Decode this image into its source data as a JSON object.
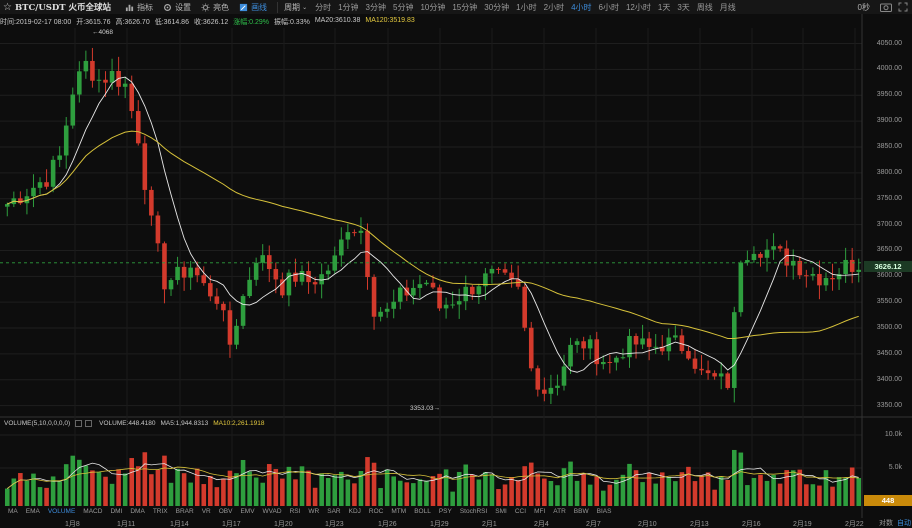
{
  "toolbar": {
    "symbol": "BTC/USDT 火币全球站",
    "indicators_label": "指标",
    "settings_label": "设置",
    "theme_label": "亮色",
    "draw_label": "画线",
    "period_label": "周期",
    "periods": [
      "分时",
      "1分钟",
      "3分钟",
      "5分钟",
      "10分钟",
      "15分钟",
      "30分钟",
      "1小时",
      "2小时",
      "4小时",
      "6小时",
      "12小时",
      "1天",
      "3天",
      "周线",
      "月线"
    ],
    "active_period": "4小时",
    "countdown": "0秒"
  },
  "info": {
    "time": "时间:2019-02-17 08:00",
    "open": "开:3615.76",
    "high": "高:3626.70",
    "low": "低:3614.86",
    "close": "收:3626.12",
    "change": "涨幅:0.29%",
    "amplitude": "振幅:0.33%",
    "ma20": "MA20:3610.38",
    "ma120": "MA120:3519.83"
  },
  "volume_info": {
    "params": "VOLUME(5,10,0,0,0,0)",
    "volume": "VOLUME:448.4180",
    "ma5": "MA5:1,944.8313",
    "ma10": "MA10:2,261.1918"
  },
  "indicator_tabs": [
    "MA",
    "EMA",
    "VOLUME",
    "MACD",
    "DMI",
    "DMA",
    "TRIX",
    "BRAR",
    "VR",
    "OBV",
    "EMV",
    "WVAD",
    "RSI",
    "WR",
    "SAR",
    "KDJ",
    "ROC",
    "MTM",
    "BOLL",
    "PSY",
    "StochRSI",
    "SMI",
    "CCI",
    "MFI",
    "ATR",
    "BBW",
    "BIAS"
  ],
  "active_indicator": "VOLUME",
  "x_labels": [
    "1月8",
    "1月11",
    "1月14",
    "1月17",
    "1月20",
    "1月23",
    "1月26",
    "1月29",
    "2月1",
    "2月4",
    "2月7",
    "2月10",
    "2月13",
    "2月16",
    "2月19",
    "2月22"
  ],
  "y_labels": [
    "4050.00",
    "4000.00",
    "3950.00",
    "3900.00",
    "3850.00",
    "3800.00",
    "3750.00",
    "3700.00",
    "3650.00",
    "3600.00",
    "3550.00",
    "3500.00",
    "3450.00",
    "3400.00",
    "3350.00"
  ],
  "vol_y_labels": [
    "10.0k",
    "5.0k"
  ],
  "current_price": "3626.12",
  "current_volume": "448",
  "high_marker": "4068",
  "low_marker": "3353.03",
  "auto_label": "自动",
  "compare_label": "对数",
  "colors": {
    "up": "#2e9e3e",
    "down": "#d33a2c",
    "ma20": "#e8e8e8",
    "ma120": "#d6c13a",
    "accent": "#3d8ddc"
  },
  "chart_data": {
    "type": "candlestick",
    "ylim": [
      3330,
      4080
    ],
    "anchors": [
      [
        0,
        3740
      ],
      [
        3,
        3765
      ],
      [
        6,
        3790
      ],
      [
        8,
        3830
      ],
      [
        10,
        3960
      ],
      [
        12,
        4010
      ],
      [
        14,
        3980
      ],
      [
        16,
        3990
      ],
      [
        18,
        3970
      ],
      [
        20,
        3870
      ],
      [
        22,
        3700
      ],
      [
        24,
        3590
      ],
      [
        26,
        3600
      ],
      [
        28,
        3620
      ],
      [
        30,
        3580
      ],
      [
        32,
        3560
      ],
      [
        34,
        3470
      ],
      [
        36,
        3560
      ],
      [
        38,
        3640
      ],
      [
        40,
        3620
      ],
      [
        42,
        3580
      ],
      [
        44,
        3600
      ],
      [
        46,
        3590
      ],
      [
        48,
        3600
      ],
      [
        50,
        3630
      ],
      [
        52,
        3700
      ],
      [
        54,
        3690
      ],
      [
        56,
        3540
      ],
      [
        58,
        3530
      ],
      [
        60,
        3560
      ],
      [
        62,
        3580
      ],
      [
        64,
        3590
      ],
      [
        66,
        3540
      ],
      [
        68,
        3555
      ],
      [
        70,
        3570
      ],
      [
        72,
        3590
      ],
      [
        74,
        3600
      ],
      [
        76,
        3590
      ],
      [
        78,
        3570
      ],
      [
        80,
        3420
      ],
      [
        82,
        3380
      ],
      [
        84,
        3400
      ],
      [
        86,
        3460
      ],
      [
        88,
        3470
      ],
      [
        90,
        3450
      ],
      [
        92,
        3430
      ],
      [
        94,
        3460
      ],
      [
        96,
        3470
      ],
      [
        98,
        3460
      ],
      [
        100,
        3470
      ],
      [
        102,
        3470
      ],
      [
        104,
        3460
      ],
      [
        106,
        3410
      ],
      [
        108,
        3400
      ],
      [
        110,
        3395
      ],
      [
        112,
        3640
      ],
      [
        114,
        3660
      ],
      [
        116,
        3650
      ],
      [
        118,
        3640
      ],
      [
        120,
        3630
      ],
      [
        122,
        3610
      ],
      [
        124,
        3600
      ],
      [
        126,
        3605
      ],
      [
        128,
        3620
      ],
      [
        130,
        3626
      ]
    ]
  }
}
